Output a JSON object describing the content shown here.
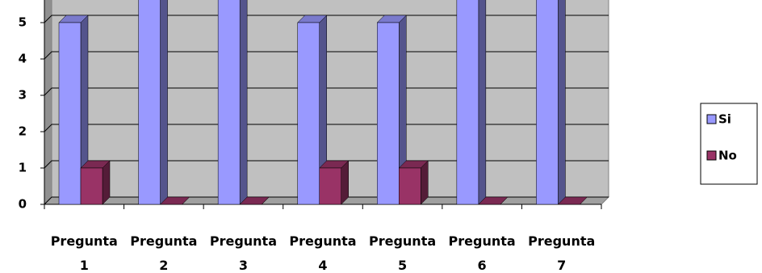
{
  "chart_data": {
    "type": "bar3d",
    "categories": [
      "Pregunta 1",
      "Pregunta 2",
      "Pregunta 3",
      "Pregunta 4",
      "Pregunta 5",
      "Pregunta 6",
      "Pregunta 7"
    ],
    "series": [
      {
        "name": "Si",
        "color": "#9999ff",
        "values": [
          5,
          6,
          6,
          5,
          5,
          6,
          6
        ]
      },
      {
        "name": "No",
        "color": "#993366",
        "values": [
          1,
          0,
          0,
          1,
          1,
          0,
          0
        ]
      }
    ],
    "ylim": [
      0,
      6
    ],
    "yticks": [
      0,
      1,
      2,
      3,
      4,
      5
    ],
    "grid": true,
    "legend": "right"
  }
}
